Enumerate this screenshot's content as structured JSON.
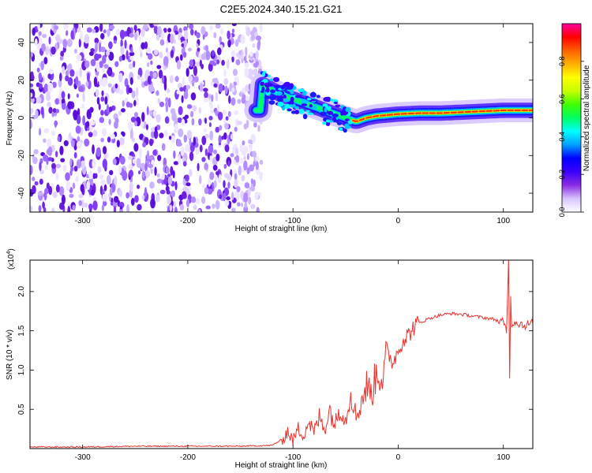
{
  "title": "C2E5.2024.340.15.21.G21",
  "chart_data": [
    {
      "type": "heatmap",
      "name": "spectrogram",
      "xlabel": "Height of straight line (km)",
      "ylabel": "Frequency (Hz)",
      "xlim": [
        -350,
        128
      ],
      "ylim": [
        -50,
        50
      ],
      "xticks": [
        -300,
        -200,
        -100,
        0,
        100
      ],
      "xtick_labels": [
        "-300",
        "-200",
        "-100",
        "0",
        "100"
      ],
      "yticks": [
        -40,
        -20,
        0,
        20,
        40
      ],
      "ytick_labels": [
        "-40",
        "-20",
        "0",
        "20",
        "40"
      ],
      "noise_region_x": [
        -350,
        -130
      ],
      "signal_track": [
        {
          "x": -130,
          "y": 18
        },
        {
          "x": -120,
          "y": 15
        },
        {
          "x": -110,
          "y": 12
        },
        {
          "x": -100,
          "y": 10
        },
        {
          "x": -90,
          "y": 8
        },
        {
          "x": -80,
          "y": 6
        },
        {
          "x": -70,
          "y": 4
        },
        {
          "x": -60,
          "y": 2
        },
        {
          "x": -50,
          "y": 0
        },
        {
          "x": -40,
          "y": -2
        },
        {
          "x": -30,
          "y": 0
        },
        {
          "x": -20,
          "y": 1
        },
        {
          "x": -10,
          "y": 1.5
        },
        {
          "x": 0,
          "y": 2
        },
        {
          "x": 20,
          "y": 2.5
        },
        {
          "x": 40,
          "y": 2.5
        },
        {
          "x": 60,
          "y": 3
        },
        {
          "x": 80,
          "y": 3.5
        },
        {
          "x": 100,
          "y": 4
        },
        {
          "x": 128,
          "y": 4
        }
      ],
      "colorbar": {
        "label": "Normalized spectral amplitude",
        "range": [
          0,
          1
        ],
        "ticks": [
          0.0,
          0.2,
          0.4,
          0.6,
          0.8
        ],
        "tick_labels": [
          "0.0",
          "0.2",
          "0.4",
          "0.6",
          "0.8"
        ],
        "colormap": [
          "#ffffff",
          "#d8c4ff",
          "#8a2be2",
          "#3b00ff",
          "#0000ff",
          "#00a0ff",
          "#00ffff",
          "#00ff60",
          "#40ff00",
          "#c8ff00",
          "#ffff00",
          "#ffb000",
          "#ff6000",
          "#ff0000",
          "#ff00a0"
        ]
      }
    },
    {
      "type": "line",
      "name": "snr",
      "xlabel": "Height of straight line (km)",
      "ylabel": "SNR (10 * v/v)",
      "y_multiplier_label": "(x10",
      "y_multiplier_exp": "4",
      "y_multiplier_close": ")",
      "xlim": [
        -350,
        128
      ],
      "ylim": [
        0,
        2.4
      ],
      "xticks": [
        -300,
        -200,
        -100,
        0,
        100
      ],
      "xtick_labels": [
        "-300",
        "-200",
        "-100",
        "0",
        "100"
      ],
      "yticks": [
        0.5,
        1.0,
        1.5,
        2.0
      ],
      "ytick_labels": [
        "0.5",
        "1.0",
        "1.5",
        "2.0"
      ],
      "color": "#e8332e",
      "series": [
        {
          "name": "SNR",
          "x": [
            -350,
            -300,
            -250,
            -200,
            -150,
            -120,
            -110,
            -105,
            -100,
            -95,
            -90,
            -85,
            -80,
            -75,
            -70,
            -65,
            -60,
            -55,
            -50,
            -45,
            -40,
            -35,
            -30,
            -25,
            -20,
            -15,
            -10,
            -5,
            0,
            5,
            10,
            15,
            20,
            30,
            40,
            50,
            60,
            70,
            80,
            90,
            95,
            100,
            103,
            105,
            106,
            107,
            108,
            110,
            115,
            120,
            128
          ],
          "values": [
            0.02,
            0.02,
            0.03,
            0.03,
            0.03,
            0.04,
            0.12,
            0.22,
            0.1,
            0.25,
            0.18,
            0.35,
            0.2,
            0.4,
            0.25,
            0.5,
            0.3,
            0.55,
            0.35,
            0.75,
            0.4,
            0.6,
            0.8,
            0.7,
            1.0,
            0.9,
            1.2,
            1.1,
            1.25,
            1.4,
            1.45,
            1.55,
            1.6,
            1.66,
            1.7,
            1.72,
            1.71,
            1.69,
            1.67,
            1.65,
            1.63,
            1.6,
            1.5,
            2.4,
            0.95,
            1.9,
            1.58,
            1.62,
            1.6,
            1.57,
            1.6
          ]
        }
      ]
    }
  ]
}
